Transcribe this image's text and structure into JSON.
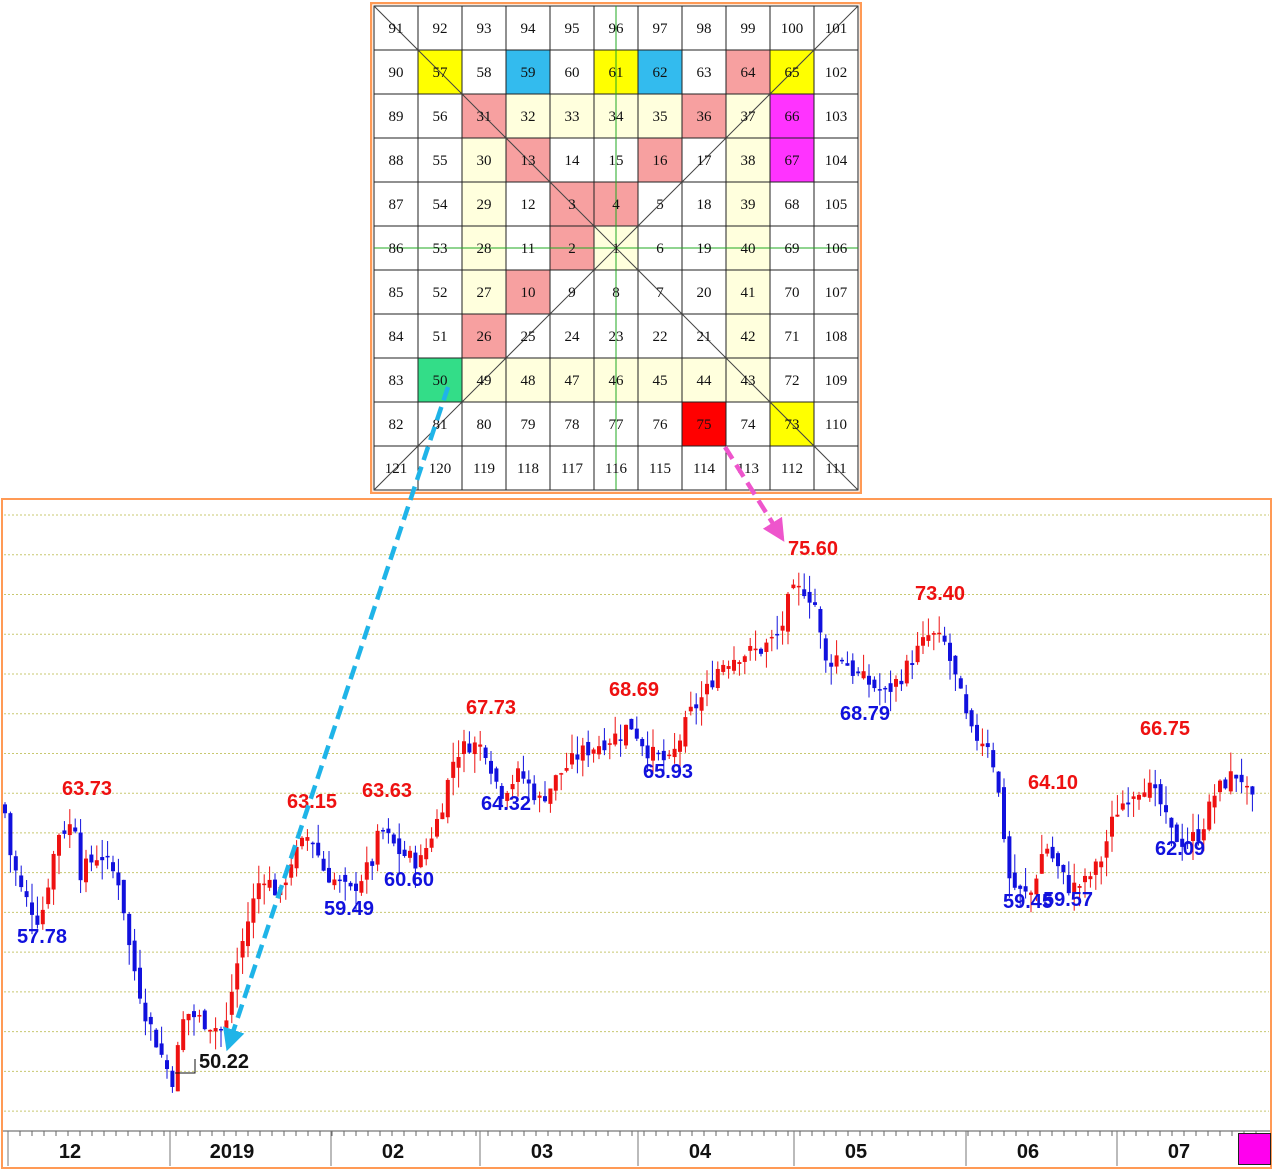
{
  "square_of_nine": {
    "rows": [
      [
        "91",
        "92",
        "93",
        "94",
        "95",
        "96",
        "97",
        "98",
        "99",
        "100",
        "101"
      ],
      [
        "90",
        "57",
        "58",
        "59",
        "60",
        "61",
        "62",
        "63",
        "64",
        "65",
        "102"
      ],
      [
        "89",
        "56",
        "31",
        "32",
        "33",
        "34",
        "35",
        "36",
        "37",
        "66",
        "103"
      ],
      [
        "88",
        "55",
        "30",
        "13",
        "14",
        "15",
        "16",
        "17",
        "38",
        "67",
        "104"
      ],
      [
        "87",
        "54",
        "29",
        "12",
        "3",
        "4",
        "5",
        "18",
        "39",
        "68",
        "105"
      ],
      [
        "86",
        "53",
        "28",
        "11",
        "2",
        "1",
        "6",
        "19",
        "40",
        "69",
        "106"
      ],
      [
        "85",
        "52",
        "27",
        "10",
        "9",
        "8",
        "7",
        "20",
        "41",
        "70",
        "107"
      ],
      [
        "84",
        "51",
        "26",
        "25",
        "24",
        "23",
        "22",
        "21",
        "42",
        "71",
        "108"
      ],
      [
        "83",
        "50",
        "49",
        "48",
        "47",
        "46",
        "45",
        "44",
        "43",
        "72",
        "109"
      ],
      [
        "82",
        "81",
        "80",
        "79",
        "78",
        "77",
        "76",
        "75",
        "74",
        "73",
        "110"
      ],
      [
        "121",
        "120",
        "119",
        "118",
        "117",
        "116",
        "115",
        "114",
        "113",
        "112",
        "111"
      ]
    ],
    "highlights": [
      {
        "value": "57",
        "color": "#ffff00"
      },
      {
        "value": "61",
        "color": "#ffff00"
      },
      {
        "value": "65",
        "color": "#ffff00"
      },
      {
        "value": "73",
        "color": "#ffff00"
      },
      {
        "value": "59",
        "color": "#33bbee"
      },
      {
        "value": "62",
        "color": "#33bbee"
      },
      {
        "value": "64",
        "color": "#f7a0a0"
      },
      {
        "value": "31",
        "color": "#f7a0a0"
      },
      {
        "value": "36",
        "color": "#f7a0a0"
      },
      {
        "value": "13",
        "color": "#f7a0a0"
      },
      {
        "value": "16",
        "color": "#f7a0a0"
      },
      {
        "value": "3",
        "color": "#f7a0a0"
      },
      {
        "value": "4",
        "color": "#f7a0a0"
      },
      {
        "value": "2",
        "color": "#f7a0a0"
      },
      {
        "value": "10",
        "color": "#f7a0a0"
      },
      {
        "value": "26",
        "color": "#f7a0a0"
      },
      {
        "value": "66",
        "color": "#ff33ff"
      },
      {
        "value": "67",
        "color": "#ff33ff"
      },
      {
        "value": "50",
        "color": "#33dd88"
      },
      {
        "value": "75",
        "color": "#ff0000"
      },
      {
        "value": "32",
        "color": "#ffffdd"
      },
      {
        "value": "33",
        "color": "#ffffdd"
      },
      {
        "value": "34",
        "color": "#ffffdd"
      },
      {
        "value": "35",
        "color": "#ffffdd"
      },
      {
        "value": "37",
        "color": "#ffffdd"
      },
      {
        "value": "30",
        "color": "#ffffdd"
      },
      {
        "value": "38",
        "color": "#ffffdd"
      },
      {
        "value": "29",
        "color": "#ffffdd"
      },
      {
        "value": "39",
        "color": "#ffffdd"
      },
      {
        "value": "28",
        "color": "#ffffdd"
      },
      {
        "value": "1",
        "color": "#ffffdd"
      },
      {
        "value": "40",
        "color": "#ffffdd"
      },
      {
        "value": "27",
        "color": "#ffffdd"
      },
      {
        "value": "41",
        "color": "#ffffdd"
      },
      {
        "value": "42",
        "color": "#ffffdd"
      },
      {
        "value": "49",
        "color": "#ffffdd"
      },
      {
        "value": "48",
        "color": "#ffffdd"
      },
      {
        "value": "47",
        "color": "#ffffdd"
      },
      {
        "value": "46",
        "color": "#ffffdd"
      },
      {
        "value": "45",
        "color": "#ffffdd"
      },
      {
        "value": "44",
        "color": "#ffffdd"
      },
      {
        "value": "43",
        "color": "#ffffdd"
      }
    ],
    "border_color": "#ff9a55"
  },
  "chart_data": {
    "type": "candlestick",
    "x_tick_labels": [
      "12",
      "2019",
      "02",
      "03",
      "04",
      "05",
      "06",
      "07"
    ],
    "ylim": [
      48,
      79
    ],
    "grid": true,
    "up_color": "#ee1111",
    "down_color": "#1111dd",
    "frame_color": "#ff9a55",
    "grid_color": "#c8c870",
    "high_label_color": "#ee1111",
    "low_label_color": "#1111dd",
    "annotations": [
      {
        "text": "57.78",
        "type": "low"
      },
      {
        "text": "63.73",
        "type": "high"
      },
      {
        "text": "50.22",
        "type": "low_key"
      },
      {
        "text": "63.15",
        "type": "high"
      },
      {
        "text": "59.49",
        "type": "low"
      },
      {
        "text": "63.63",
        "type": "high"
      },
      {
        "text": "60.60",
        "type": "low"
      },
      {
        "text": "67.73",
        "type": "high"
      },
      {
        "text": "64.32",
        "type": "low"
      },
      {
        "text": "68.69",
        "type": "high"
      },
      {
        "text": "65.93",
        "type": "low"
      },
      {
        "text": "75.60",
        "type": "high"
      },
      {
        "text": "68.79",
        "type": "low"
      },
      {
        "text": "73.40",
        "type": "high"
      },
      {
        "text": "64.10",
        "type": "high"
      },
      {
        "text": "59.45",
        "type": "low"
      },
      {
        "text": "59.57",
        "type": "low"
      },
      {
        "text": "66.75",
        "type": "high"
      },
      {
        "text": "62.09",
        "type": "low"
      }
    ],
    "connectors": [
      {
        "from_cell": "50",
        "to_label": "50.22",
        "color": "#1fb4e8"
      },
      {
        "from_cell": "75",
        "to_label": "75.60",
        "color": "#ee55cc"
      }
    ],
    "corner_swatch_color": "#ff00ee"
  }
}
